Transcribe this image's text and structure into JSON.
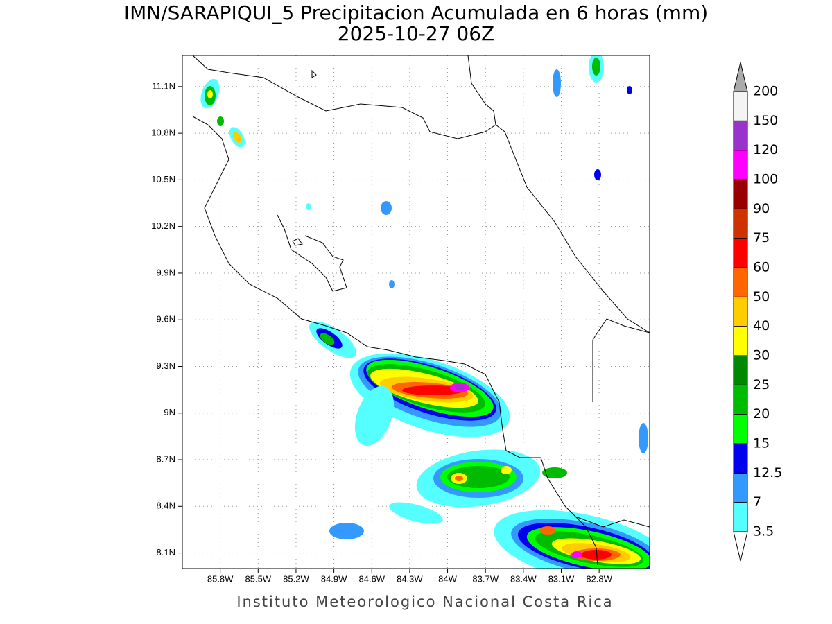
{
  "map": {
    "title": "IMN/SARAPIQUI_5 Precipitacion Acumulada en 6 horas (mm)",
    "subtitle": "2025-10-27 06Z",
    "footer": "Instituto Meteorologico Nacional Costa Rica",
    "xlim": [
      -86.1,
      -82.4
    ],
    "ylim": [
      8.0,
      11.3
    ],
    "xticks": [
      {
        "value": -85.8,
        "label": "85.8W"
      },
      {
        "value": -85.5,
        "label": "85.5W"
      },
      {
        "value": -85.2,
        "label": "85.2W"
      },
      {
        "value": -84.9,
        "label": "84.9W"
      },
      {
        "value": -84.6,
        "label": "84.6W"
      },
      {
        "value": -84.3,
        "label": "84.3W"
      },
      {
        "value": -84.0,
        "label": "84W"
      },
      {
        "value": -83.7,
        "label": "83.7W"
      },
      {
        "value": -83.4,
        "label": "83.4W"
      },
      {
        "value": -83.1,
        "label": "83.1W"
      },
      {
        "value": -82.8,
        "label": "82.8W"
      }
    ],
    "yticks": [
      {
        "value": 8.1,
        "label": "8.1N"
      },
      {
        "value": 8.4,
        "label": "8.4N"
      },
      {
        "value": 8.7,
        "label": "8.7N"
      },
      {
        "value": 9.0,
        "label": "9N"
      },
      {
        "value": 9.3,
        "label": "9.3N"
      },
      {
        "value": 9.6,
        "label": "9.6N"
      },
      {
        "value": 9.9,
        "label": "9.9N"
      },
      {
        "value": 10.2,
        "label": "10.2N"
      },
      {
        "value": 10.5,
        "label": "10.5N"
      },
      {
        "value": 10.8,
        "label": "10.8N"
      },
      {
        "value": 11.1,
        "label": "11.1N"
      }
    ],
    "levels": [
      3.5,
      7,
      12.5,
      15,
      20,
      25,
      30,
      40,
      50,
      60,
      75,
      90,
      100,
      120,
      150,
      200
    ],
    "colors": [
      "#55ffff",
      "#3399ff",
      "#0000ee",
      "#00ff00",
      "#00bb00",
      "#008800",
      "#ffff00",
      "#ffcc00",
      "#ff6600",
      "#ff0000",
      "#cc3300",
      "#990000",
      "#ff00ff",
      "#9933cc",
      "#f4f4f4"
    ],
    "under_color": "#ffffff",
    "over_color": "#aaaaaa"
  }
}
